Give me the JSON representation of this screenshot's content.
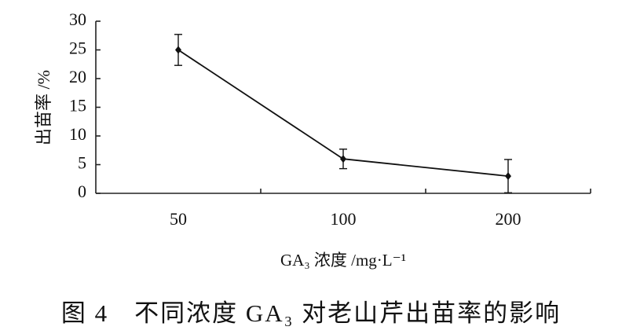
{
  "chart_data": {
    "type": "line",
    "categories": [
      "50",
      "100",
      "200"
    ],
    "values": [
      25,
      6,
      3
    ],
    "errors": [
      2.7,
      1.7,
      2.9
    ],
    "color": "#111111",
    "ylim": [
      0,
      30
    ],
    "yticks": [
      0,
      5,
      10,
      15,
      20,
      25,
      30
    ],
    "ylabel": "出苗率 /%",
    "xlabel": "GA₃ 浓度 /mg·L⁻¹",
    "caption": "图 4　不同浓度 GA₃ 对老山芹出苗率的影响"
  }
}
